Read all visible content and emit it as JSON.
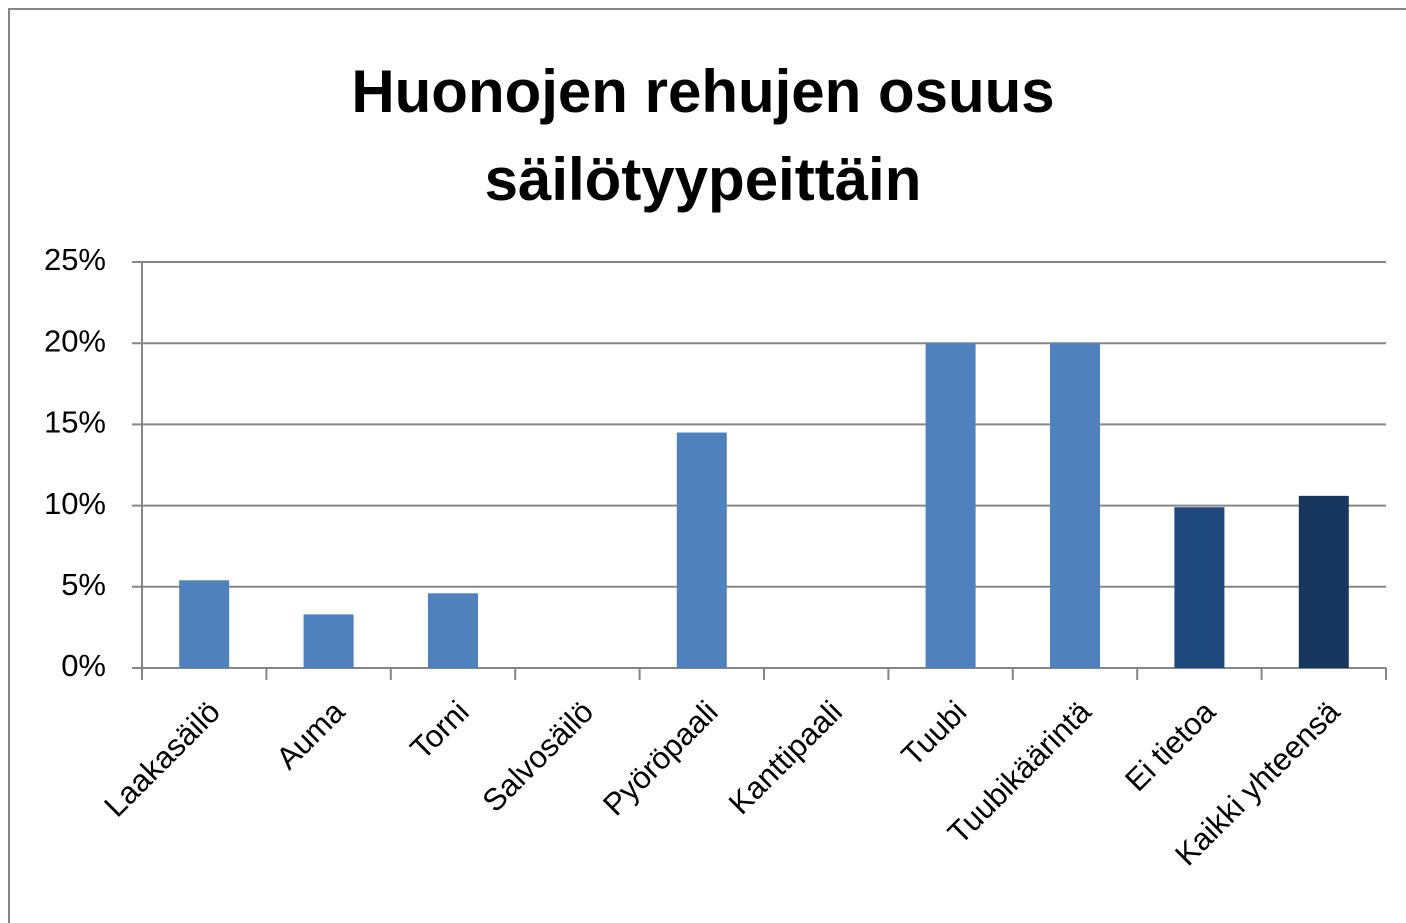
{
  "chart_data": {
    "type": "bar",
    "title": "Huonojen rehujen osuus säilötyypeittäin",
    "categories": [
      "Laakasäilö",
      "Auma",
      "Torni",
      "Salvosäilö",
      "Pyöröpaali",
      "Kanttipaali",
      "Tuubi",
      "Tuubikäärintä",
      "Ei tietoa",
      "Kaikki yhteensä"
    ],
    "values": [
      5.4,
      3.3,
      4.6,
      0,
      14.5,
      0,
      20.0,
      20.0,
      9.9,
      10.6
    ],
    "colors": [
      "#4f81bd",
      "#4f81bd",
      "#4f81bd",
      "#4f81bd",
      "#4f81bd",
      "#4f81bd",
      "#4f81bd",
      "#4f81bd",
      "#1f497d",
      "#17375e"
    ],
    "ylim": [
      0,
      25
    ],
    "yticks": [
      {
        "value": 0,
        "label": "0%"
      },
      {
        "value": 5,
        "label": "5%"
      },
      {
        "value": 10,
        "label": "10%"
      },
      {
        "value": 15,
        "label": "15%"
      },
      {
        "value": 20,
        "label": "20%"
      },
      {
        "value": 25,
        "label": "25%"
      }
    ],
    "grid": true
  }
}
